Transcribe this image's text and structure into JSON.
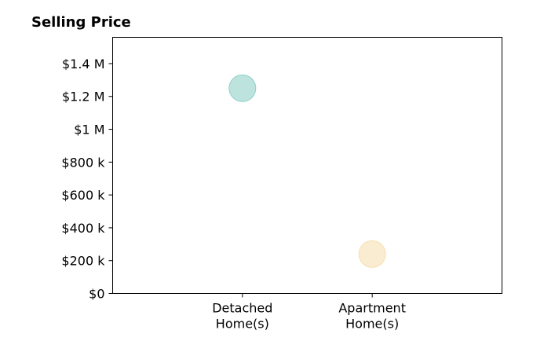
{
  "chart_data": {
    "type": "scatter",
    "title": "Selling Price",
    "xlabel": "",
    "ylabel": "",
    "categories": [
      [
        "Detached",
        "Home(s)"
      ],
      [
        "Apartment",
        "Home(s)"
      ]
    ],
    "xlim": [
      -1,
      2
    ],
    "ylim": [
      0,
      1560000
    ],
    "yticks": [
      0,
      200000,
      400000,
      600000,
      800000,
      1000000,
      1200000,
      1400000
    ],
    "ytick_labels": [
      "$0",
      "$200 k",
      "$400 k",
      "$600 k",
      "$800 k",
      "$1 M",
      "$1.2 M",
      "$1.4 M"
    ],
    "points": [
      {
        "category_index": 0,
        "y": 1250000,
        "color": "#8fd1c8"
      },
      {
        "category_index": 1,
        "y": 240000,
        "color": "#f6dfb0"
      }
    ],
    "grid": false,
    "legend": "none"
  }
}
